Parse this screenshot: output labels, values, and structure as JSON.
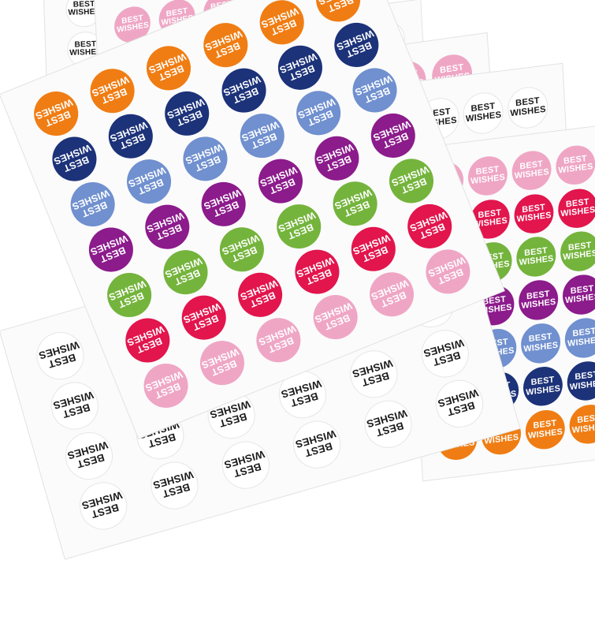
{
  "sticker_text": "BEST\nWISHES",
  "colors": {
    "pink": "#efa6c5",
    "red": "#e2154d",
    "green": "#74b43c",
    "purple": "#8c1b8c",
    "blue": "#7090cf",
    "navy": "#1c3279",
    "orange": "#f07d13",
    "white": "#ffffff",
    "paper": "#fbfbfb"
  },
  "sheets": [
    {
      "id": "back-1",
      "rows": [
        "white",
        "white",
        "white",
        "white"
      ],
      "cols": 5
    },
    {
      "id": "back-2",
      "rows": [
        "pink",
        "red",
        "green",
        "purple"
      ],
      "cols": 5
    },
    {
      "id": "back-3",
      "rows": [
        "white",
        "white",
        "white",
        "white"
      ],
      "cols": 5
    },
    {
      "id": "back-4",
      "rows": [
        "pink",
        "red",
        "green",
        "purple"
      ],
      "cols": 5
    },
    {
      "id": "back-5",
      "rows": [
        "white",
        "white",
        "white",
        "white",
        "white",
        "white"
      ],
      "cols": 5
    },
    {
      "id": "front-right",
      "rows": [
        "pink",
        "red",
        "green",
        "purple",
        "blue",
        "navy",
        "orange"
      ],
      "cols": 4
    },
    {
      "id": "bottom-white",
      "rows": [
        "white",
        "white",
        "white",
        "white"
      ],
      "cols": 6
    },
    {
      "id": "front-left",
      "rows": [
        "orange",
        "navy",
        "blue",
        "purple",
        "green",
        "red",
        "pink"
      ],
      "cols": 6
    }
  ]
}
